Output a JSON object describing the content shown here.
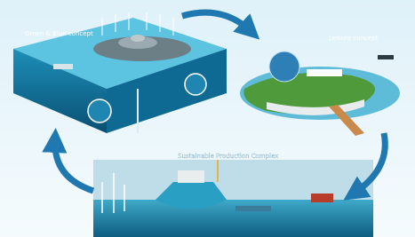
{
  "nodes": [
    {
      "label": "Green & Blue concept"
    },
    {
      "label": "Leisure concept"
    },
    {
      "label": "Sustainable Production Complex"
    }
  ]
}
